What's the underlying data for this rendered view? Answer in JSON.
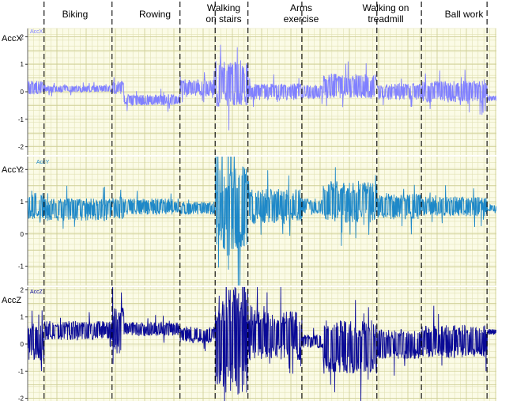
{
  "chart_data": {
    "type": "line",
    "activities": [
      "Biking",
      "Rowing",
      "Walking on stairs",
      "Arms exercise",
      "Walking on treadmill",
      "Ball work"
    ],
    "boundaries": [
      0.035,
      0.18,
      0.325,
      0.4,
      0.47,
      0.585,
      0.745,
      0.84,
      0.98
    ],
    "segment_bounds": [
      [
        0.035,
        0.18
      ],
      [
        0.18,
        0.325
      ],
      [
        0.325,
        0.47
      ],
      [
        0.47,
        0.585
      ],
      [
        0.585,
        0.84
      ],
      [
        0.84,
        0.98
      ]
    ],
    "x_range": [
      0,
      1
    ],
    "grid": true,
    "panels": [
      {
        "name": "AccX",
        "legend": "AccX",
        "color": "#8080ff",
        "yticks": [
          "2",
          "1",
          "0",
          "-1",
          "-2"
        ],
        "ylim": [
          -2.3,
          2.3
        ],
        "segments": [
          {
            "x0": 0.0,
            "x1": 0.035,
            "level": 0.15,
            "amp": 0.25
          },
          {
            "x0": 0.035,
            "x1": 0.18,
            "level": 0.1,
            "amp": 0.12
          },
          {
            "x0": 0.18,
            "x1": 0.205,
            "level": 0.15,
            "amp": 0.25
          },
          {
            "x0": 0.205,
            "x1": 0.325,
            "level": -0.3,
            "amp": 0.2
          },
          {
            "x0": 0.325,
            "x1": 0.4,
            "level": 0.15,
            "amp": 0.3
          },
          {
            "x0": 0.4,
            "x1": 0.47,
            "level": 0.3,
            "amp": 0.85
          },
          {
            "x0": 0.47,
            "x1": 0.585,
            "level": 0.0,
            "amp": 0.3
          },
          {
            "x0": 0.585,
            "x1": 0.63,
            "level": 0.0,
            "amp": 0.25
          },
          {
            "x0": 0.63,
            "x1": 0.745,
            "level": 0.2,
            "amp": 0.45
          },
          {
            "x0": 0.745,
            "x1": 0.84,
            "level": 0.0,
            "amp": 0.3
          },
          {
            "x0": 0.84,
            "x1": 0.98,
            "level": 0.0,
            "amp": 0.4
          },
          {
            "x0": 0.98,
            "x1": 1.0,
            "level": -0.25,
            "amp": 0.1
          }
        ]
      },
      {
        "name": "AccY",
        "legend": "AccY",
        "color": "#1e88c8",
        "yticks": [
          "2",
          "1",
          "0",
          "-1"
        ],
        "ylim": [
          -1.6,
          2.4
        ],
        "segments": [
          {
            "x0": 0.0,
            "x1": 0.035,
            "level": 0.9,
            "amp": 0.45
          },
          {
            "x0": 0.035,
            "x1": 0.18,
            "level": 0.75,
            "amp": 0.35
          },
          {
            "x0": 0.18,
            "x1": 0.205,
            "level": 0.8,
            "amp": 0.35
          },
          {
            "x0": 0.205,
            "x1": 0.325,
            "level": 0.85,
            "amp": 0.25
          },
          {
            "x0": 0.325,
            "x1": 0.4,
            "level": 0.8,
            "amp": 0.2
          },
          {
            "x0": 0.4,
            "x1": 0.47,
            "level": 0.8,
            "amp": 1.3
          },
          {
            "x0": 0.47,
            "x1": 0.585,
            "level": 0.85,
            "amp": 0.55
          },
          {
            "x0": 0.585,
            "x1": 0.63,
            "level": 0.85,
            "amp": 0.25
          },
          {
            "x0": 0.63,
            "x1": 0.745,
            "level": 1.0,
            "amp": 0.65
          },
          {
            "x0": 0.745,
            "x1": 0.84,
            "level": 0.85,
            "amp": 0.4
          },
          {
            "x0": 0.84,
            "x1": 0.98,
            "level": 0.85,
            "amp": 0.3
          },
          {
            "x0": 0.98,
            "x1": 1.0,
            "level": 0.8,
            "amp": 0.1
          }
        ]
      },
      {
        "name": "AccZ",
        "legend": "AccZ",
        "color": "#0a0a96",
        "yticks": [
          "2",
          "1",
          "0",
          "-1",
          "-2"
        ],
        "ylim": [
          -2.1,
          2.1
        ],
        "segments": [
          {
            "x0": 0.0,
            "x1": 0.035,
            "level": 0.1,
            "amp": 0.7
          },
          {
            "x0": 0.035,
            "x1": 0.18,
            "level": 0.5,
            "amp": 0.35
          },
          {
            "x0": 0.18,
            "x1": 0.205,
            "level": 0.55,
            "amp": 0.9
          },
          {
            "x0": 0.205,
            "x1": 0.325,
            "level": 0.55,
            "amp": 0.25
          },
          {
            "x0": 0.325,
            "x1": 0.4,
            "level": 0.35,
            "amp": 0.3
          },
          {
            "x0": 0.4,
            "x1": 0.47,
            "level": 0.1,
            "amp": 2.0
          },
          {
            "x0": 0.47,
            "x1": 0.585,
            "level": 0.3,
            "amp": 0.9
          },
          {
            "x0": 0.585,
            "x1": 0.63,
            "level": 0.1,
            "amp": 0.25
          },
          {
            "x0": 0.63,
            "x1": 0.745,
            "level": -0.1,
            "amp": 1.0
          },
          {
            "x0": 0.745,
            "x1": 0.84,
            "level": 0.0,
            "amp": 0.55
          },
          {
            "x0": 0.84,
            "x1": 0.98,
            "level": 0.1,
            "amp": 0.6
          },
          {
            "x0": 0.98,
            "x1": 1.0,
            "level": 0.45,
            "amp": 0.1
          }
        ]
      }
    ]
  }
}
